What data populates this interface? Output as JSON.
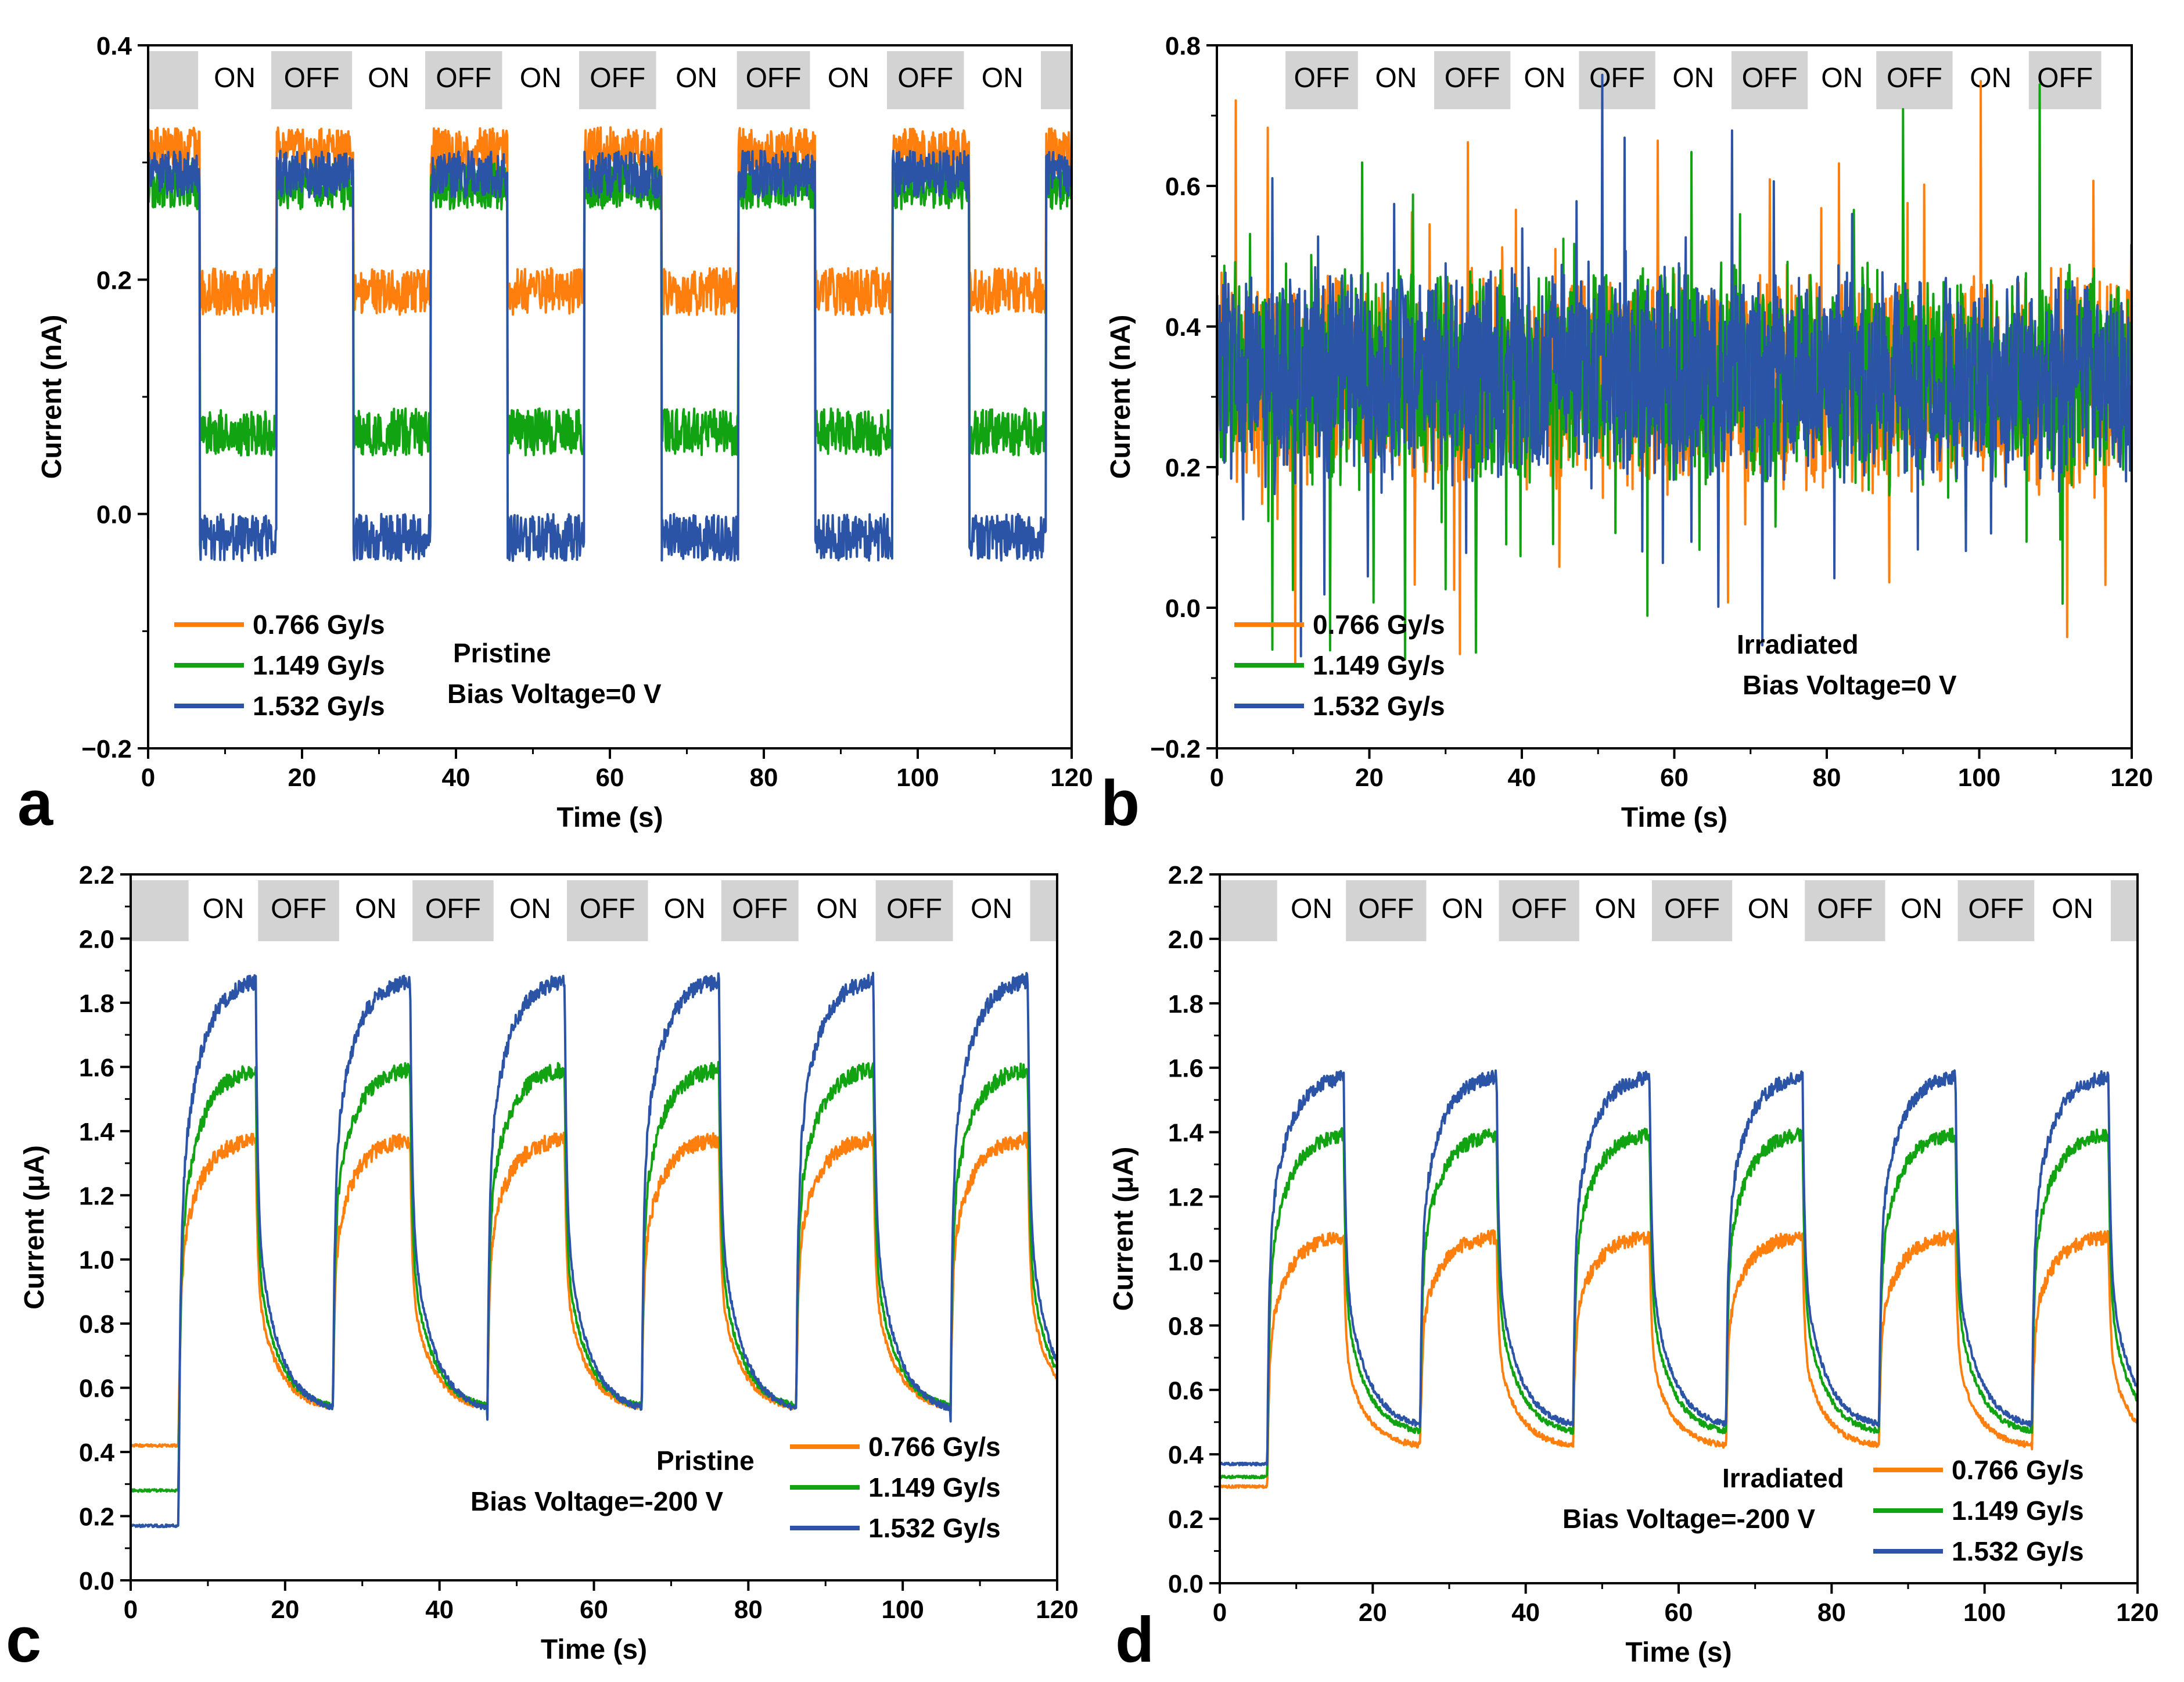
{
  "figure": {
    "colors": {
      "orange": "#ff7f0e",
      "green": "#12a312",
      "blue": "#2b54a7",
      "band": "#d3d3d3",
      "axis": "#000000"
    },
    "legend_labels": [
      "0.766 Gy/s",
      "1.149 Gy/s",
      "1.532 Gy/s"
    ]
  },
  "chart_data": [
    {
      "id": "a",
      "panel_letter": "a",
      "type": "line",
      "title": "",
      "xlabel": "Time (s)",
      "ylabel": "Current (nA)",
      "xlim": [
        0,
        120
      ],
      "ylim": [
        -0.2,
        0.4
      ],
      "xticks": [
        "0",
        "20",
        "40",
        "60",
        "80",
        "100",
        "120"
      ],
      "yticks": [
        "−0.2",
        "0.0",
        "0.2",
        "0.4"
      ],
      "band_labels": [
        "ON",
        "OFF",
        "ON",
        "OFF",
        "ON",
        "OFF",
        "ON",
        "OFF",
        "ON",
        "OFF",
        "ON"
      ],
      "annotations": [
        "Pristine",
        "Bias Voltage=0 V"
      ],
      "legend_position": "bottom-left",
      "signal": {
        "mode": "square",
        "start_first_on": 6.7,
        "period": 20,
        "on_duration": 10,
        "noise": 0.02
      },
      "series": [
        {
          "name": "0.766 Gy/s",
          "color": "#ff7f0e",
          "off_level": 0.31,
          "on_level": 0.19
        },
        {
          "name": "1.149 Gy/s",
          "color": "#12a312",
          "off_level": 0.28,
          "on_level": 0.07
        },
        {
          "name": "1.532 Gy/s",
          "color": "#2b54a7",
          "off_level": 0.29,
          "on_level": -0.02
        }
      ]
    },
    {
      "id": "b",
      "panel_letter": "b",
      "type": "line",
      "title": "",
      "xlabel": "Time (s)",
      "ylabel": "Current (nA)",
      "xlim": [
        0,
        120
      ],
      "ylim": [
        -0.2,
        0.8
      ],
      "xticks": [
        "0",
        "20",
        "40",
        "60",
        "80",
        "100",
        "120"
      ],
      "yticks": [
        "−0.2",
        "0.0",
        "0.2",
        "0.4",
        "0.6",
        "0.8"
      ],
      "band_labels": [
        "OFF",
        "ON",
        "OFF",
        "ON",
        "OFF",
        "ON",
        "OFF",
        "ON",
        "OFF",
        "ON",
        "OFF"
      ],
      "annotations": [
        "Irradiated",
        "Bias Voltage=0 V"
      ],
      "legend_position": "bottom-left",
      "signal": {
        "mode": "noisy",
        "base": 0.32,
        "noise": 0.12
      },
      "series": [
        {
          "name": "0.766 Gy/s",
          "color": "#ff7f0e",
          "off_level": 0.32,
          "on_level": 0.32
        },
        {
          "name": "1.149 Gy/s",
          "color": "#12a312",
          "off_level": 0.33,
          "on_level": 0.33
        },
        {
          "name": "1.532 Gy/s",
          "color": "#2b54a7",
          "off_level": 0.33,
          "on_level": 0.33
        }
      ]
    },
    {
      "id": "c",
      "panel_letter": "c",
      "type": "line",
      "title": "",
      "xlabel": "Time (s)",
      "ylabel": "Current (μA)",
      "xlim": [
        0,
        120
      ],
      "ylim": [
        0.0,
        2.2
      ],
      "xticks": [
        "0",
        "20",
        "40",
        "60",
        "80",
        "100",
        "120"
      ],
      "yticks": [
        "0.0",
        "0.2",
        "0.4",
        "0.6",
        "0.8",
        "1.0",
        "1.2",
        "1.4",
        "1.6",
        "1.8",
        "2.0",
        "2.2"
      ],
      "band_labels": [
        "ON",
        "OFF",
        "ON",
        "OFF",
        "ON",
        "OFF",
        "ON",
        "OFF",
        "ON",
        "OFF",
        "ON"
      ],
      "annotations": [
        "Pristine",
        "Bias Voltage=-200 V"
      ],
      "legend_position": "bottom-right",
      "signal": {
        "mode": "exp",
        "start_first_on": 6.2,
        "period": 20,
        "on_duration": 10,
        "noise": 0.025
      },
      "series": [
        {
          "name": "0.766 Gy/s",
          "color": "#ff7f0e",
          "initial": 0.42,
          "on_level": 1.38,
          "off_level": 0.53
        },
        {
          "name": "1.149 Gy/s",
          "color": "#12a312",
          "initial": 0.28,
          "on_level": 1.6,
          "off_level": 0.53
        },
        {
          "name": "1.532 Gy/s",
          "color": "#2b54a7",
          "initial": 0.17,
          "on_level": 1.88,
          "off_level": 0.52
        }
      ]
    },
    {
      "id": "d",
      "panel_letter": "d",
      "type": "line",
      "title": "",
      "xlabel": "Time (s)",
      "ylabel": "Current (μA)",
      "xlim": [
        0,
        120
      ],
      "ylim": [
        0.0,
        2.2
      ],
      "xticks": [
        "0",
        "20",
        "40",
        "60",
        "80",
        "100",
        "120"
      ],
      "yticks": [
        "0.0",
        "0.2",
        "0.4",
        "0.6",
        "0.8",
        "1.0",
        "1.2",
        "1.4",
        "1.6",
        "1.8",
        "2.0",
        "2.2"
      ],
      "band_labels": [
        "ON",
        "OFF",
        "ON",
        "OFF",
        "ON",
        "OFF",
        "ON",
        "OFF",
        "ON",
        "OFF",
        "ON"
      ],
      "annotations": [
        "Irradiated",
        "Bias Voltage=-200 V"
      ],
      "legend_position": "bottom-right",
      "signal": {
        "mode": "exp",
        "start_first_on": 6.2,
        "period": 20,
        "on_duration": 10,
        "noise": 0.022
      },
      "series": [
        {
          "name": "0.766 Gy/s",
          "color": "#ff7f0e",
          "initial": 0.3,
          "on_level": 1.08,
          "off_level": 0.42
        },
        {
          "name": "1.149 Gy/s",
          "color": "#12a312",
          "initial": 0.33,
          "on_level": 1.4,
          "off_level": 0.46
        },
        {
          "name": "1.532 Gy/s",
          "color": "#2b54a7",
          "initial": 0.37,
          "on_level": 1.58,
          "off_level": 0.48
        }
      ]
    }
  ]
}
